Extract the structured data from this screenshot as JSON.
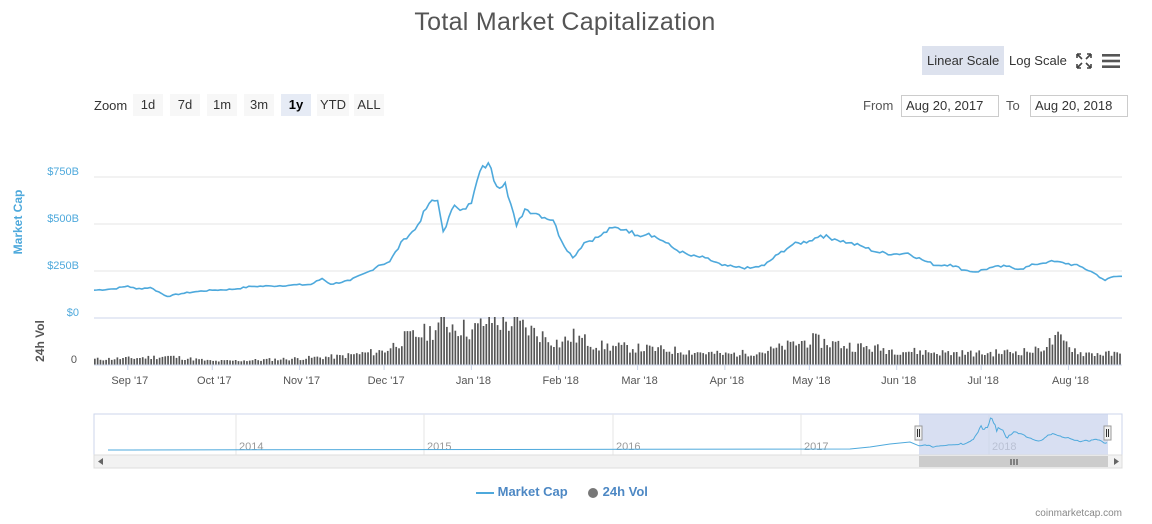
{
  "title": "Total Market Capitalization",
  "controls": {
    "linear_scale": "Linear Scale",
    "log_scale": "Log Scale",
    "active_scale": "linear",
    "zoom_label": "Zoom",
    "zoom_buttons": [
      "1d",
      "7d",
      "1m",
      "3m",
      "1y",
      "YTD",
      "ALL"
    ],
    "zoom_active": "1y",
    "from_label": "From",
    "from_value": "Aug 20, 2017",
    "to_label": "To",
    "to_value": "Aug 20, 2018",
    "icons": [
      "fullscreen-icon",
      "menu-icon"
    ]
  },
  "colors": {
    "market_cap": "#4ea9dc",
    "volume": "#555555",
    "axis_label": "#4ea9dc",
    "navigator_mask": "#c8d2ec"
  },
  "legend": {
    "market_cap": "Market Cap",
    "volume": "24h Vol",
    "placement": "bottom-center"
  },
  "credit": "coinmarketcap.com",
  "chart_data": {
    "type": "line",
    "x_range": [
      "2017-08-20",
      "2018-08-20"
    ],
    "x_ticks": [
      {
        "date": "2017-09-01",
        "label": "Sep '17"
      },
      {
        "date": "2017-10-01",
        "label": "Oct '17"
      },
      {
        "date": "2017-11-01",
        "label": "Nov '17"
      },
      {
        "date": "2017-12-01",
        "label": "Dec '17"
      },
      {
        "date": "2018-01-01",
        "label": "Jan '18"
      },
      {
        "date": "2018-02-01",
        "label": "Feb '18"
      },
      {
        "date": "2018-03-01",
        "label": "Mar '18"
      },
      {
        "date": "2018-04-01",
        "label": "Apr '18"
      },
      {
        "date": "2018-05-01",
        "label": "May '18"
      },
      {
        "date": "2018-06-01",
        "label": "Jun '18"
      },
      {
        "date": "2018-07-01",
        "label": "Jul '18"
      },
      {
        "date": "2018-08-01",
        "label": "Aug '18"
      }
    ],
    "market_cap_axis": {
      "label": "Market Cap",
      "min": 0,
      "max": 750,
      "ticks": [
        {
          "value": 750,
          "label": "$750B"
        },
        {
          "value": 500,
          "label": "$500B"
        },
        {
          "value": 250,
          "label": "$250B"
        },
        {
          "value": 0,
          "label": "$0"
        }
      ],
      "grid": true
    },
    "volume_axis": {
      "label": "24h Vol",
      "ticks": [
        {
          "value": 0,
          "label": "0"
        }
      ]
    },
    "series": [
      {
        "name": "Market Cap",
        "unit": "B USD",
        "points": [
          [
            "2017-08-20",
            148
          ],
          [
            "2017-08-27",
            155
          ],
          [
            "2017-09-01",
            170
          ],
          [
            "2017-09-04",
            155
          ],
          [
            "2017-09-09",
            162
          ],
          [
            "2017-09-15",
            115
          ],
          [
            "2017-09-20",
            130
          ],
          [
            "2017-09-25",
            140
          ],
          [
            "2017-10-01",
            148
          ],
          [
            "2017-10-08",
            152
          ],
          [
            "2017-10-15",
            168
          ],
          [
            "2017-10-22",
            170
          ],
          [
            "2017-10-29",
            175
          ],
          [
            "2017-11-05",
            178
          ],
          [
            "2017-11-09",
            210
          ],
          [
            "2017-11-12",
            180
          ],
          [
            "2017-11-19",
            200
          ],
          [
            "2017-11-26",
            250
          ],
          [
            "2017-11-29",
            280
          ],
          [
            "2017-12-03",
            300
          ],
          [
            "2017-12-08",
            420
          ],
          [
            "2017-12-12",
            470
          ],
          [
            "2017-12-17",
            610
          ],
          [
            "2017-12-20",
            625
          ],
          [
            "2017-12-22",
            460
          ],
          [
            "2017-12-26",
            600
          ],
          [
            "2017-12-29",
            580
          ],
          [
            "2018-01-01",
            610
          ],
          [
            "2018-01-04",
            780
          ],
          [
            "2018-01-07",
            825
          ],
          [
            "2018-01-10",
            700
          ],
          [
            "2018-01-13",
            720
          ],
          [
            "2018-01-17",
            490
          ],
          [
            "2018-01-20",
            580
          ],
          [
            "2018-01-25",
            550
          ],
          [
            "2018-01-30",
            520
          ],
          [
            "2018-02-02",
            410
          ],
          [
            "2018-02-06",
            320
          ],
          [
            "2018-02-10",
            400
          ],
          [
            "2018-02-15",
            430
          ],
          [
            "2018-02-20",
            480
          ],
          [
            "2018-02-25",
            470
          ],
          [
            "2018-03-01",
            440
          ],
          [
            "2018-03-05",
            450
          ],
          [
            "2018-03-10",
            410
          ],
          [
            "2018-03-15",
            360
          ],
          [
            "2018-03-20",
            330
          ],
          [
            "2018-03-25",
            320
          ],
          [
            "2018-03-31",
            280
          ],
          [
            "2018-04-05",
            270
          ],
          [
            "2018-04-10",
            265
          ],
          [
            "2018-04-15",
            280
          ],
          [
            "2018-04-20",
            340
          ],
          [
            "2018-04-25",
            390
          ],
          [
            "2018-05-01",
            410
          ],
          [
            "2018-05-05",
            440
          ],
          [
            "2018-05-10",
            420
          ],
          [
            "2018-05-15",
            400
          ],
          [
            "2018-05-20",
            380
          ],
          [
            "2018-05-25",
            350
          ],
          [
            "2018-05-31",
            340
          ],
          [
            "2018-06-05",
            345
          ],
          [
            "2018-06-10",
            310
          ],
          [
            "2018-06-15",
            280
          ],
          [
            "2018-06-20",
            285
          ],
          [
            "2018-06-25",
            255
          ],
          [
            "2018-06-29",
            245
          ],
          [
            "2018-07-05",
            270
          ],
          [
            "2018-07-10",
            275
          ],
          [
            "2018-07-15",
            260
          ],
          [
            "2018-07-20",
            285
          ],
          [
            "2018-07-25",
            300
          ],
          [
            "2018-07-30",
            295
          ],
          [
            "2018-08-05",
            275
          ],
          [
            "2018-08-10",
            240
          ],
          [
            "2018-08-14",
            200
          ],
          [
            "2018-08-17",
            220
          ],
          [
            "2018-08-20",
            222
          ]
        ]
      },
      {
        "name": "24h Vol",
        "unit": "relative",
        "points": [
          [
            "2017-08-20",
            0.12
          ],
          [
            "2017-09-01",
            0.14
          ],
          [
            "2017-09-15",
            0.18
          ],
          [
            "2017-10-01",
            0.08
          ],
          [
            "2017-10-15",
            0.1
          ],
          [
            "2017-11-01",
            0.14
          ],
          [
            "2017-11-15",
            0.18
          ],
          [
            "2017-12-01",
            0.3
          ],
          [
            "2017-12-08",
            0.55
          ],
          [
            "2017-12-17",
            0.7
          ],
          [
            "2017-12-22",
            0.9
          ],
          [
            "2018-01-01",
            0.7
          ],
          [
            "2018-01-07",
            0.95
          ],
          [
            "2018-01-17",
            0.85
          ],
          [
            "2018-02-01",
            0.45
          ],
          [
            "2018-02-06",
            0.6
          ],
          [
            "2018-02-15",
            0.4
          ],
          [
            "2018-03-01",
            0.35
          ],
          [
            "2018-03-15",
            0.3
          ],
          [
            "2018-04-01",
            0.22
          ],
          [
            "2018-04-15",
            0.28
          ],
          [
            "2018-05-01",
            0.52
          ],
          [
            "2018-05-15",
            0.4
          ],
          [
            "2018-06-01",
            0.3
          ],
          [
            "2018-06-15",
            0.26
          ],
          [
            "2018-07-01",
            0.24
          ],
          [
            "2018-07-20",
            0.3
          ],
          [
            "2018-07-28",
            0.55
          ],
          [
            "2018-08-05",
            0.25
          ],
          [
            "2018-08-20",
            0.22
          ]
        ]
      }
    ],
    "navigator": {
      "x_ticks": [
        "2014",
        "2015",
        "2016",
        "2017",
        "2018"
      ],
      "selected_range": [
        "2017-08-20",
        "2018-08-20"
      ]
    }
  }
}
